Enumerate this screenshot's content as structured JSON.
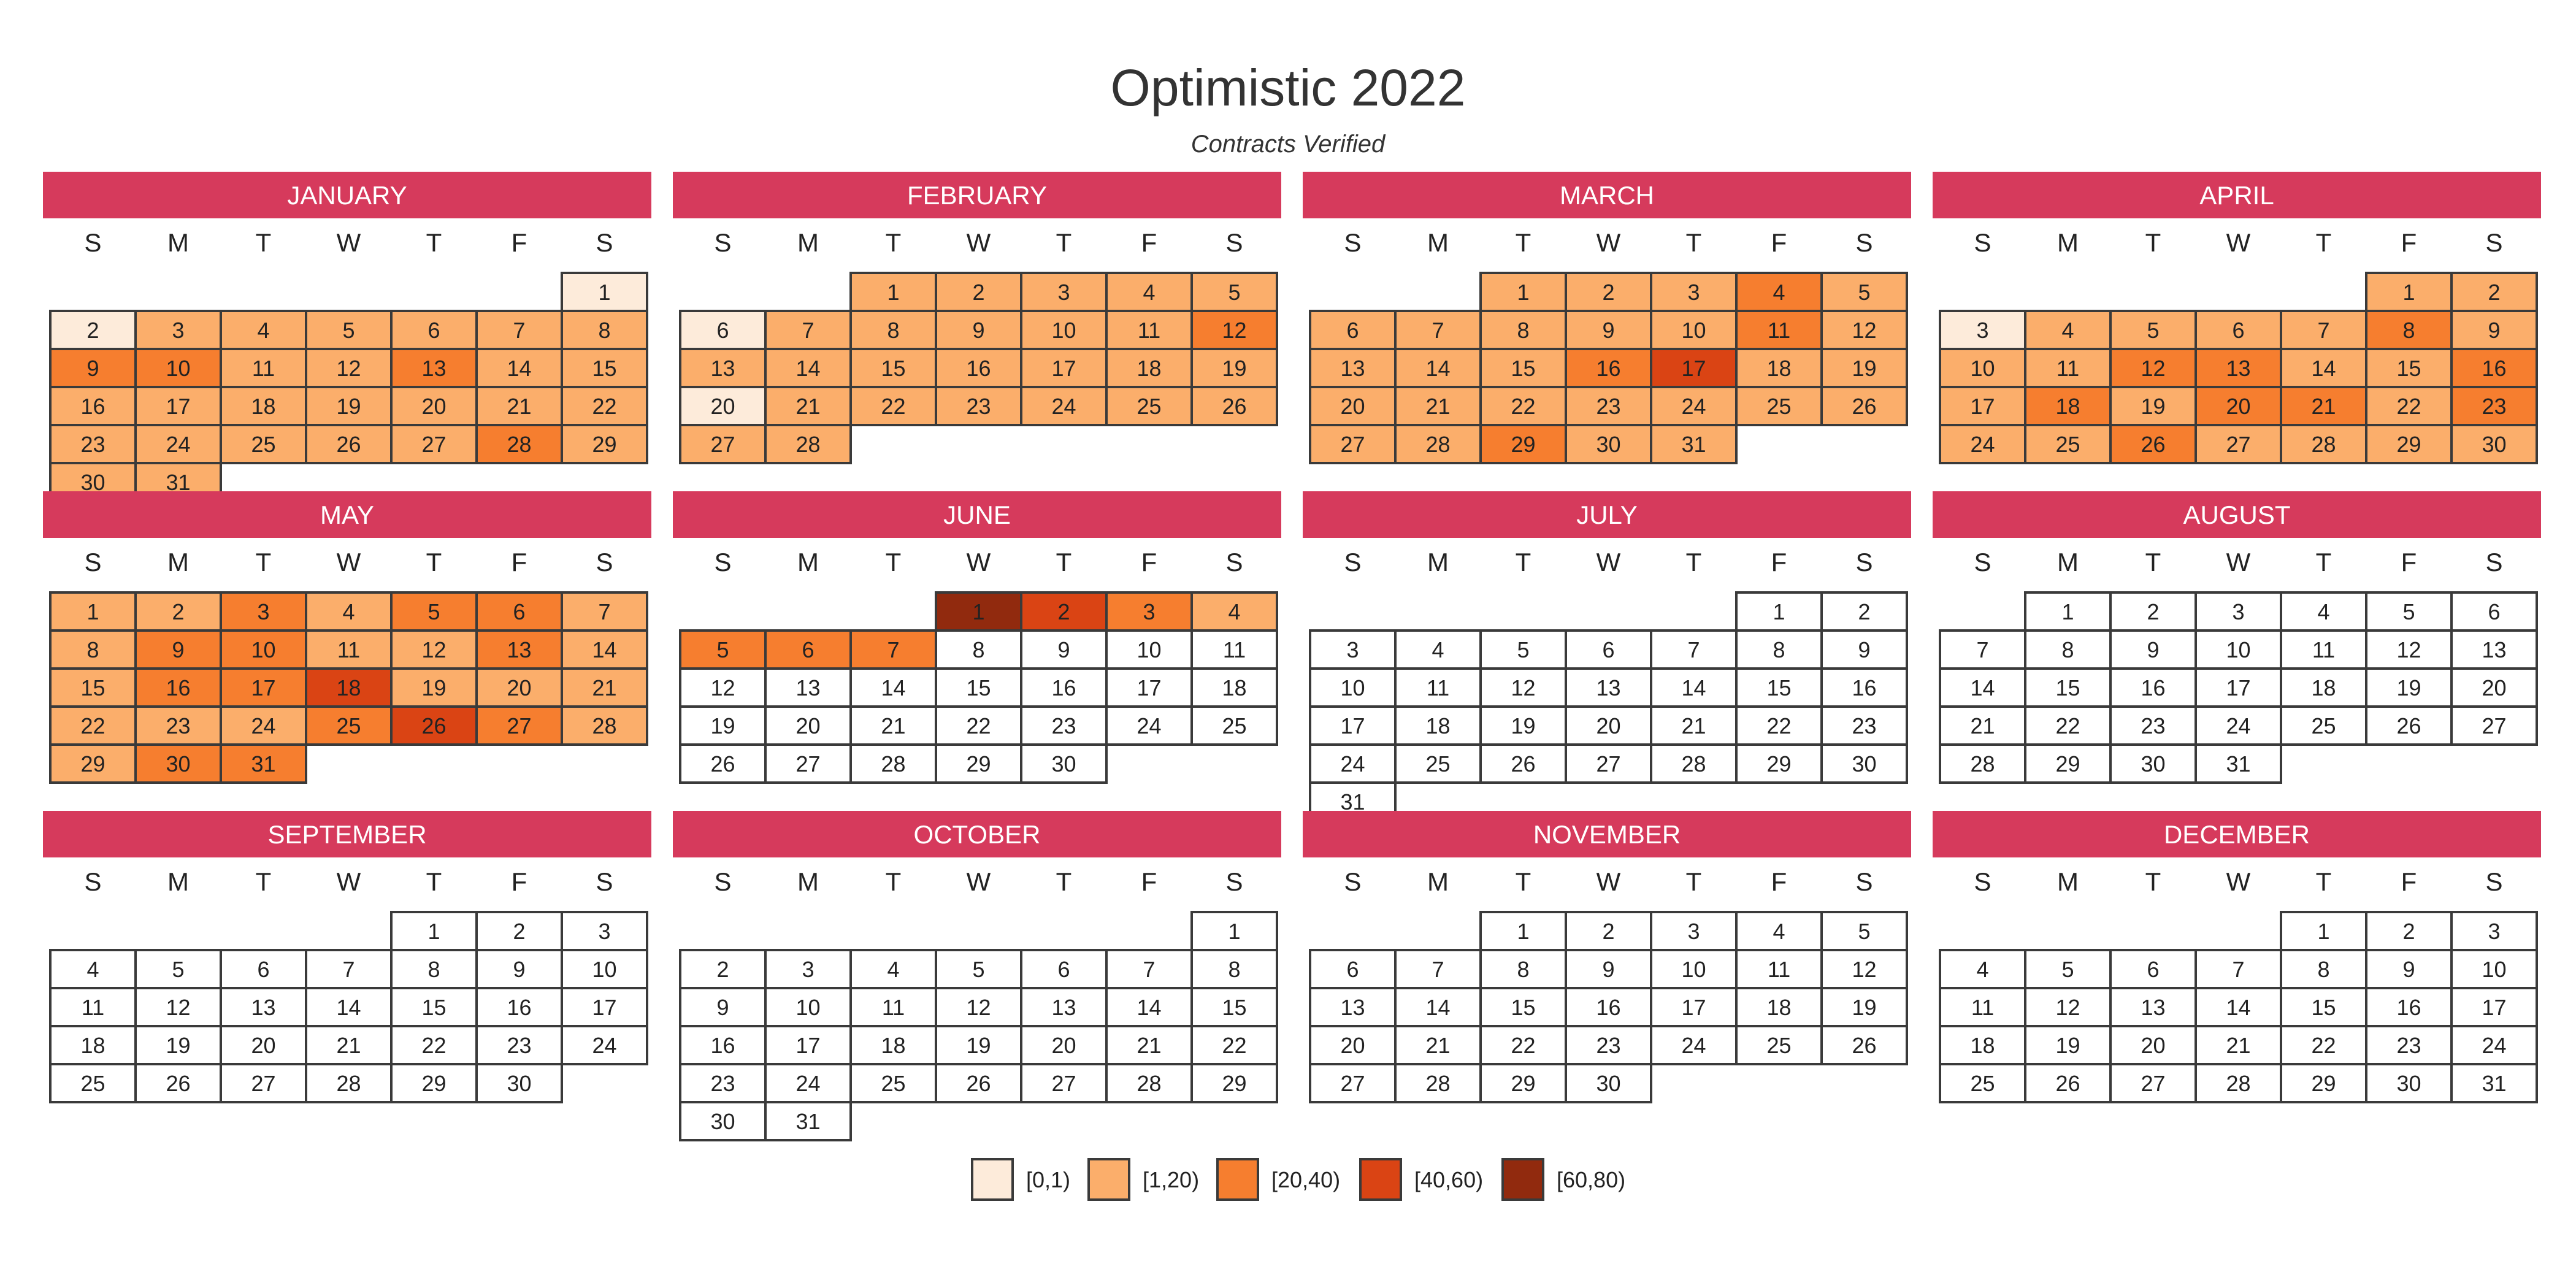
{
  "chart_data": {
    "type": "heatmap",
    "title": "Optimistic 2022",
    "subtitle": "Contracts Verified",
    "year": 2022,
    "months": [
      "JANUARY",
      "FEBRUARY",
      "MARCH",
      "APRIL",
      "MAY",
      "JUNE",
      "JULY",
      "AUGUST",
      "SEPTEMBER",
      "OCTOBER",
      "NOVEMBER",
      "DECEMBER"
    ],
    "weekday_labels": [
      "S",
      "M",
      "T",
      "W",
      "T",
      "F",
      "S"
    ],
    "legend": {
      "placement": "bottom",
      "bins": [
        {
          "label": "[0,1)",
          "color": "#FDEBDA"
        },
        {
          "label": "[1,20)",
          "color": "#FBAE6B"
        },
        {
          "label": "[20,40)",
          "color": "#F67E2F"
        },
        {
          "label": "[40,60)",
          "color": "#DA4414"
        },
        {
          "label": "[60,80)",
          "color": "#912A0E"
        }
      ]
    },
    "colors": {
      "header_band": "#D63A5C",
      "no_data": "#FFFFFF"
    },
    "day_bins": {
      "1": [
        0,
        0,
        1,
        1,
        1,
        1,
        1,
        1,
        2,
        2,
        1,
        1,
        2,
        1,
        1,
        1,
        1,
        1,
        1,
        1,
        1,
        1,
        1,
        1,
        1,
        1,
        1,
        2,
        1,
        1,
        1
      ],
      "2": [
        1,
        1,
        1,
        1,
        1,
        0,
        1,
        1,
        1,
        1,
        1,
        2,
        1,
        1,
        1,
        1,
        1,
        1,
        1,
        0,
        1,
        1,
        1,
        1,
        1,
        1,
        1,
        1
      ],
      "3": [
        1,
        1,
        1,
        2,
        1,
        1,
        1,
        1,
        1,
        1,
        2,
        1,
        1,
        1,
        1,
        2,
        3,
        1,
        1,
        1,
        1,
        1,
        1,
        1,
        1,
        1,
        1,
        1,
        2,
        1,
        1
      ],
      "4": [
        1,
        1,
        0,
        1,
        1,
        1,
        1,
        2,
        1,
        1,
        1,
        2,
        2,
        1,
        1,
        2,
        1,
        2,
        1,
        2,
        2,
        1,
        2,
        1,
        1,
        2,
        1,
        1,
        1,
        1
      ],
      "5": [
        1,
        1,
        2,
        1,
        2,
        2,
        1,
        1,
        2,
        2,
        1,
        1,
        2,
        1,
        1,
        2,
        2,
        3,
        1,
        1,
        1,
        1,
        1,
        1,
        2,
        3,
        2,
        1,
        1,
        2,
        2
      ],
      "6": [
        4,
        3,
        2,
        1,
        2,
        2,
        2,
        -1,
        -1,
        -1,
        -1,
        -1,
        -1,
        -1,
        -1,
        -1,
        -1,
        -1,
        -1,
        -1,
        -1,
        -1,
        -1,
        -1,
        -1,
        -1,
        -1,
        -1,
        -1,
        -1
      ]
    }
  }
}
